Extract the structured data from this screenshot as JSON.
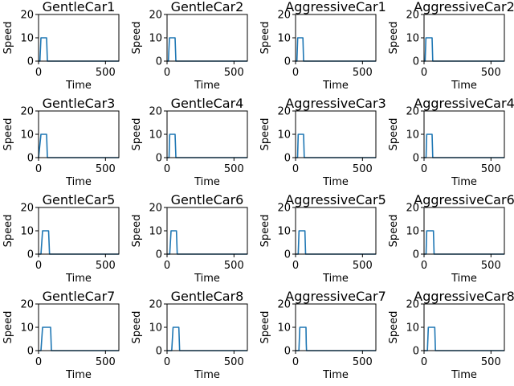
{
  "figure": {
    "series_color": "#1f77b4"
  },
  "chart_data": [
    {
      "type": "line",
      "title": "GentleCar1",
      "xlabel": "Time",
      "ylabel": "Speed",
      "xlim": [
        0,
        600
      ],
      "ylim": [
        0,
        20
      ],
      "xticks": [
        0,
        500
      ],
      "yticks": [
        0,
        10,
        20
      ],
      "grid": false,
      "series": [
        {
          "x": [
            0,
            10,
            18,
            60,
            66,
            600
          ],
          "y": [
            0,
            0,
            10,
            10,
            0,
            0
          ]
        }
      ]
    },
    {
      "type": "line",
      "title": "GentleCar2",
      "xlabel": "Time",
      "ylabel": "Speed",
      "xlim": [
        0,
        600
      ],
      "ylim": [
        0,
        20
      ],
      "xticks": [
        0,
        500
      ],
      "yticks": [
        0,
        10,
        20
      ],
      "grid": false,
      "series": [
        {
          "x": [
            0,
            5,
            10,
            18,
            60,
            66,
            600
          ],
          "y": [
            0,
            0,
            0,
            10,
            10,
            0,
            0
          ]
        }
      ]
    },
    {
      "type": "line",
      "title": "AggressiveCar1",
      "xlabel": "Time",
      "ylabel": "Speed",
      "xlim": [
        0,
        600
      ],
      "ylim": [
        0,
        20
      ],
      "xticks": [
        0,
        500
      ],
      "yticks": [
        0,
        10,
        20
      ],
      "grid": false,
      "series": [
        {
          "x": [
            0,
            10,
            16,
            55,
            60,
            600
          ],
          "y": [
            0,
            0,
            10,
            10,
            0,
            0
          ]
        }
      ]
    },
    {
      "type": "line",
      "title": "AggressiveCar2",
      "xlabel": "Time",
      "ylabel": "Speed",
      "xlim": [
        0,
        600
      ],
      "ylim": [
        0,
        20
      ],
      "xticks": [
        0,
        500
      ],
      "yticks": [
        0,
        10,
        20
      ],
      "grid": false,
      "series": [
        {
          "x": [
            0,
            8,
            14,
            60,
            65,
            600
          ],
          "y": [
            0,
            0,
            10,
            10,
            0,
            0
          ]
        }
      ]
    },
    {
      "type": "line",
      "title": "GentleCar3",
      "xlabel": "Time",
      "ylabel": "Speed",
      "xlim": [
        0,
        600
      ],
      "ylim": [
        0,
        20
      ],
      "xticks": [
        0,
        500
      ],
      "yticks": [
        0,
        10,
        20
      ],
      "grid": false,
      "series": [
        {
          "x": [
            0,
            0,
            18,
            60,
            66,
            600
          ],
          "y": [
            0,
            0,
            10,
            10,
            0,
            0
          ]
        }
      ]
    },
    {
      "type": "line",
      "title": "GentleCar4",
      "xlabel": "Time",
      "ylabel": "Speed",
      "xlim": [
        0,
        600
      ],
      "ylim": [
        0,
        20
      ],
      "xticks": [
        0,
        500
      ],
      "yticks": [
        0,
        10,
        20
      ],
      "grid": false,
      "series": [
        {
          "x": [
            0,
            5,
            15,
            20,
            60,
            66,
            600
          ],
          "y": [
            0,
            0,
            0,
            10,
            10,
            0,
            0
          ]
        }
      ]
    },
    {
      "type": "line",
      "title": "AggressiveCar3",
      "xlabel": "Time",
      "ylabel": "Speed",
      "xlim": [
        0,
        600
      ],
      "ylim": [
        0,
        20
      ],
      "xticks": [
        0,
        500
      ],
      "yticks": [
        0,
        10,
        20
      ],
      "grid": false,
      "series": [
        {
          "x": [
            0,
            15,
            20,
            60,
            65,
            600
          ],
          "y": [
            0,
            0,
            10,
            10,
            0,
            0
          ]
        }
      ]
    },
    {
      "type": "line",
      "title": "AggressiveCar4",
      "xlabel": "Time",
      "ylabel": "Speed",
      "xlim": [
        0,
        600
      ],
      "ylim": [
        0,
        20
      ],
      "xticks": [
        0,
        500
      ],
      "yticks": [
        0,
        10,
        20
      ],
      "grid": false,
      "series": [
        {
          "x": [
            0,
            15,
            20,
            60,
            65,
            600
          ],
          "y": [
            0,
            0,
            10,
            10,
            0,
            0
          ]
        }
      ]
    },
    {
      "type": "line",
      "title": "GentleCar5",
      "xlabel": "Time",
      "ylabel": "Speed",
      "xlim": [
        0,
        600
      ],
      "ylim": [
        0,
        20
      ],
      "xticks": [
        0,
        500
      ],
      "yticks": [
        0,
        10,
        20
      ],
      "grid": false,
      "series": [
        {
          "x": [
            0,
            18,
            30,
            75,
            82,
            600
          ],
          "y": [
            0,
            0,
            10,
            10,
            0,
            0
          ]
        }
      ]
    },
    {
      "type": "line",
      "title": "GentleCar6",
      "xlabel": "Time",
      "ylabel": "Speed",
      "xlim": [
        0,
        600
      ],
      "ylim": [
        0,
        20
      ],
      "xticks": [
        0,
        500
      ],
      "yticks": [
        0,
        10,
        20
      ],
      "grid": false,
      "series": [
        {
          "x": [
            0,
            20,
            30,
            70,
            76,
            600
          ],
          "y": [
            0,
            0,
            10,
            10,
            0,
            0
          ]
        }
      ]
    },
    {
      "type": "line",
      "title": "AggressiveCar5",
      "xlabel": "Time",
      "ylabel": "Speed",
      "xlim": [
        0,
        600
      ],
      "ylim": [
        0,
        20
      ],
      "xticks": [
        0,
        500
      ],
      "yticks": [
        0,
        10,
        20
      ],
      "grid": false,
      "series": [
        {
          "x": [
            0,
            20,
            26,
            70,
            75,
            600
          ],
          "y": [
            0,
            0,
            10,
            10,
            0,
            0
          ]
        }
      ]
    },
    {
      "type": "line",
      "title": "AggressiveCar6",
      "xlabel": "Time",
      "ylabel": "Speed",
      "xlim": [
        0,
        600
      ],
      "ylim": [
        0,
        20
      ],
      "xticks": [
        0,
        500
      ],
      "yticks": [
        0,
        10,
        20
      ],
      "grid": false,
      "series": [
        {
          "x": [
            0,
            15,
            20,
            70,
            75,
            600
          ],
          "y": [
            0,
            0,
            10,
            10,
            0,
            0
          ]
        }
      ]
    },
    {
      "type": "line",
      "title": "GentleCar7",
      "xlabel": "Time",
      "ylabel": "Speed",
      "xlim": [
        0,
        600
      ],
      "ylim": [
        0,
        20
      ],
      "xticks": [
        0,
        500
      ],
      "yticks": [
        0,
        10,
        20
      ],
      "grid": false,
      "series": [
        {
          "x": [
            0,
            18,
            30,
            90,
            96,
            600
          ],
          "y": [
            0,
            0,
            10,
            10,
            0,
            0
          ]
        }
      ]
    },
    {
      "type": "line",
      "title": "GentleCar8",
      "xlabel": "Time",
      "ylabel": "Speed",
      "xlim": [
        0,
        600
      ],
      "ylim": [
        0,
        20
      ],
      "xticks": [
        0,
        500
      ],
      "yticks": [
        0,
        10,
        20
      ],
      "grid": false,
      "series": [
        {
          "x": [
            0,
            35,
            45,
            88,
            94,
            600
          ],
          "y": [
            0,
            0,
            10,
            10,
            0,
            0
          ]
        }
      ]
    },
    {
      "type": "line",
      "title": "AggressiveCar7",
      "xlabel": "Time",
      "ylabel": "Speed",
      "xlim": [
        0,
        600
      ],
      "ylim": [
        0,
        20
      ],
      "xticks": [
        0,
        500
      ],
      "yticks": [
        0,
        10,
        20
      ],
      "grid": false,
      "series": [
        {
          "x": [
            0,
            25,
            32,
            78,
            80,
            82,
            600
          ],
          "y": [
            0,
            0,
            10,
            10,
            3,
            0,
            0
          ]
        }
      ]
    },
    {
      "type": "line",
      "title": "AggressiveCar8",
      "xlabel": "Time",
      "ylabel": "Speed",
      "xlim": [
        0,
        600
      ],
      "ylim": [
        0,
        20
      ],
      "xticks": [
        0,
        500
      ],
      "yticks": [
        0,
        10,
        20
      ],
      "grid": false,
      "series": [
        {
          "x": [
            0,
            25,
            32,
            80,
            85,
            600
          ],
          "y": [
            0,
            0,
            10,
            10,
            0,
            0
          ]
        }
      ]
    }
  ]
}
